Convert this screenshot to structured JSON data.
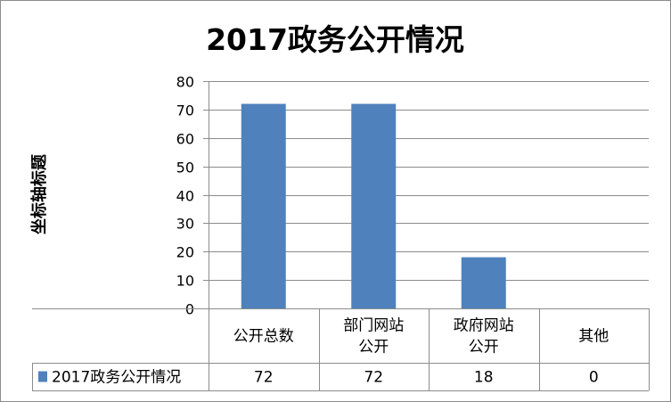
{
  "chart_data": {
    "type": "bar",
    "title": "2017政务公开情况",
    "ylabel": "坐标轴标题",
    "xlabel": "",
    "categories": [
      [
        "公开总数"
      ],
      [
        "部门网站",
        "公开"
      ],
      [
        "政府网站",
        "公开"
      ],
      [
        "其他"
      ]
    ],
    "series": [
      {
        "name": "2017政务公开情况",
        "values": [
          72,
          72,
          18,
          0
        ],
        "color": "#4f81bd"
      }
    ],
    "ylim": [
      0,
      80
    ],
    "yticks": [
      0,
      10,
      20,
      30,
      40,
      50,
      60,
      70,
      80
    ],
    "grid": true,
    "legend": "data-table",
    "data_table": {
      "row_label": "2017政务公开情况",
      "values": [
        "72",
        "72",
        "18",
        "0"
      ]
    }
  }
}
